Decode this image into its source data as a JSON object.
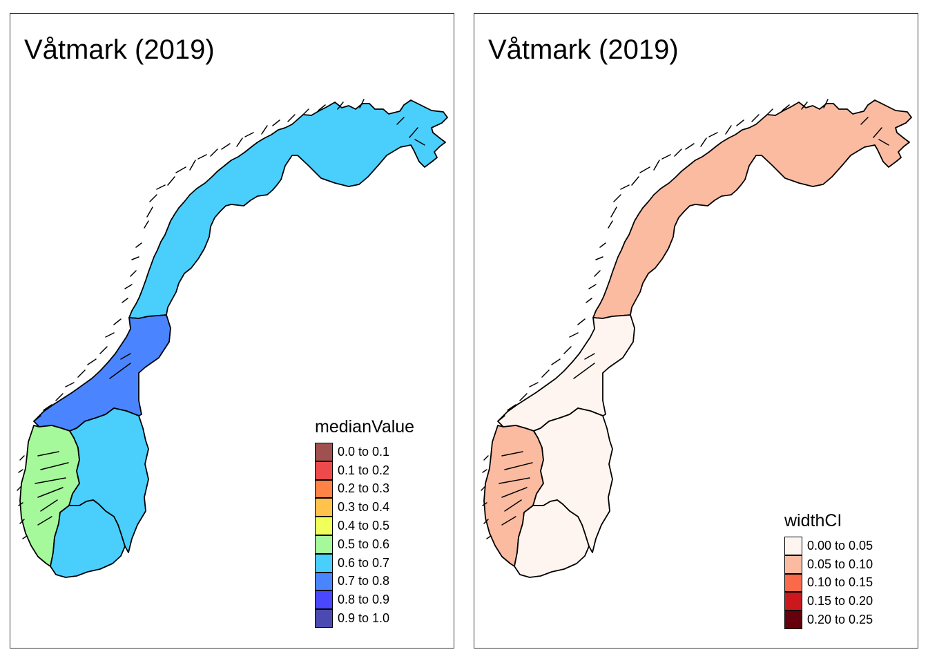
{
  "panels": [
    {
      "title": "Våtmark (2019)",
      "legend": {
        "title": "medianValue",
        "items": [
          {
            "label": "0.0 to 0.1",
            "color": "#A0504F"
          },
          {
            "label": "0.1 to 0.2",
            "color": "#EE4A4B"
          },
          {
            "label": "0.2 to 0.3",
            "color": "#FF8247"
          },
          {
            "label": "0.3 to 0.4",
            "color": "#FFC34B"
          },
          {
            "label": "0.4 to 0.5",
            "color": "#F0FF5A"
          },
          {
            "label": "0.5 to 0.6",
            "color": "#A6F99A"
          },
          {
            "label": "0.6 to 0.7",
            "color": "#4ACFFD"
          },
          {
            "label": "0.7 to 0.8",
            "color": "#4A85FF"
          },
          {
            "label": "0.8 to 0.9",
            "color": "#4B47FF"
          },
          {
            "label": "0.9 to 1.0",
            "color": "#4B4AB1"
          }
        ]
      },
      "region_colors": {
        "north": "#4ACFFD",
        "trondelag": "#4A85FF",
        "vestlandet": "#A6F99A",
        "ostlandet": "#4ACFFD",
        "sorlandet": "#4ACFFD"
      }
    },
    {
      "title": "Våtmark (2019)",
      "legend": {
        "title": "widthCI",
        "items": [
          {
            "label": "0.00 to 0.05",
            "color": "#FFF5F0"
          },
          {
            "label": "0.05 to 0.10",
            "color": "#FBBBA1"
          },
          {
            "label": "0.10 to 0.15",
            "color": "#F9694A"
          },
          {
            "label": "0.15 to 0.20",
            "color": "#CB181D"
          },
          {
            "label": "0.20 to 0.25",
            "color": "#67000D"
          }
        ]
      },
      "region_colors": {
        "north": "#FBBBA1",
        "trondelag": "#FFF5F0",
        "vestlandet": "#FBBBA1",
        "ostlandet": "#FFF5F0",
        "sorlandet": "#FFF5F0"
      }
    }
  ]
}
